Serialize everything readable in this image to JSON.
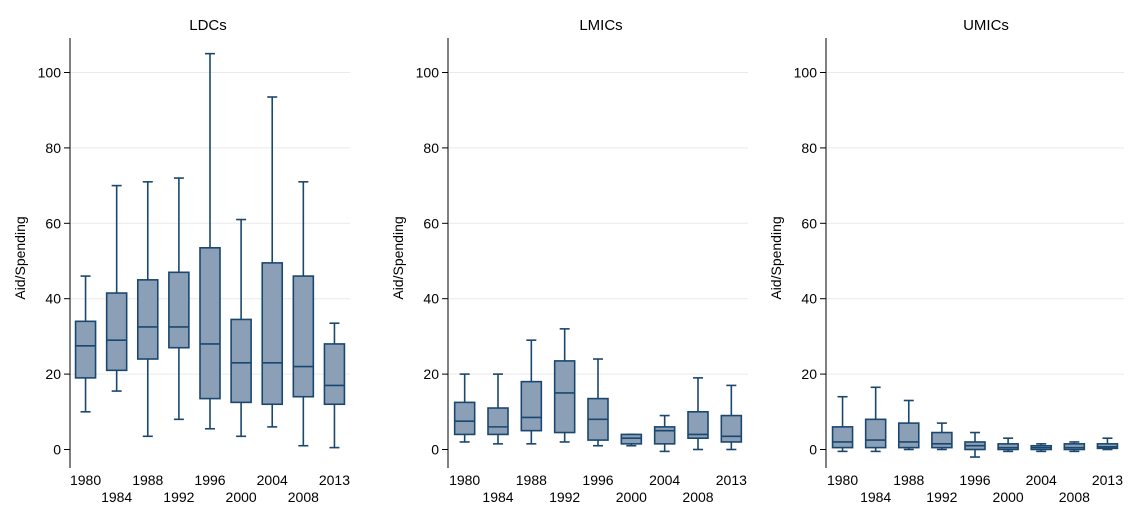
{
  "colors": {
    "box_fill": "#8ba0b6",
    "box_stroke": "#1a476f",
    "grid": "#eaeaea",
    "axis": "#000000"
  },
  "chart_data": [
    {
      "type": "box",
      "title": "LDCs",
      "xlabel": "",
      "ylabel": "Aid/Spending",
      "ylim": [
        0,
        100
      ],
      "yticks": [
        0,
        20,
        40,
        60,
        80,
        100
      ],
      "grid": true,
      "categories": [
        "1980",
        "1984",
        "1988",
        "1992",
        "1996",
        "2000",
        "2004",
        "2008",
        "2013"
      ],
      "boxes": [
        {
          "x": "1980",
          "min": 10,
          "q1": 19,
          "median": 27.5,
          "q3": 34,
          "max": 46
        },
        {
          "x": "1984",
          "min": 15.5,
          "q1": 21,
          "median": 29,
          "q3": 41.5,
          "max": 70
        },
        {
          "x": "1988",
          "min": 3.5,
          "q1": 24,
          "median": 32.5,
          "q3": 45,
          "max": 71
        },
        {
          "x": "1992",
          "min": 8,
          "q1": 27,
          "median": 32.5,
          "q3": 47,
          "max": 72
        },
        {
          "x": "1996",
          "min": 5.5,
          "q1": 13.5,
          "median": 28,
          "q3": 53.5,
          "max": 105
        },
        {
          "x": "2000",
          "min": 3.5,
          "q1": 12.5,
          "median": 23,
          "q3": 34.5,
          "max": 61
        },
        {
          "x": "2004",
          "min": 6,
          "q1": 12,
          "median": 23,
          "q3": 49.5,
          "max": 93.5
        },
        {
          "x": "2008",
          "min": 1,
          "q1": 14,
          "median": 22,
          "q3": 46,
          "max": 71
        },
        {
          "x": "2013",
          "min": 0.5,
          "q1": 12,
          "median": 17,
          "q3": 28,
          "max": 33.5
        }
      ]
    },
    {
      "type": "box",
      "title": "LMICs",
      "xlabel": "",
      "ylabel": "Aid/Spending",
      "ylim": [
        0,
        100
      ],
      "yticks": [
        0,
        20,
        40,
        60,
        80,
        100
      ],
      "grid": true,
      "categories": [
        "1980",
        "1984",
        "1988",
        "1992",
        "1996",
        "2000",
        "2004",
        "2008",
        "2013"
      ],
      "boxes": [
        {
          "x": "1980",
          "min": 2,
          "q1": 4,
          "median": 7.5,
          "q3": 12.5,
          "max": 20
        },
        {
          "x": "1984",
          "min": 1.5,
          "q1": 4,
          "median": 6,
          "q3": 11,
          "max": 20
        },
        {
          "x": "1988",
          "min": 1.5,
          "q1": 5,
          "median": 8.5,
          "q3": 18,
          "max": 29
        },
        {
          "x": "1992",
          "min": 2,
          "q1": 4.5,
          "median": 15,
          "q3": 23.5,
          "max": 32
        },
        {
          "x": "1996",
          "min": 1,
          "q1": 2.5,
          "median": 8,
          "q3": 13.5,
          "max": 24
        },
        {
          "x": "2000",
          "min": 1,
          "q1": 1.5,
          "median": 3,
          "q3": 4,
          "max": 4
        },
        {
          "x": "2004",
          "min": -0.5,
          "q1": 1.5,
          "median": 5,
          "q3": 6,
          "max": 9
        },
        {
          "x": "2008",
          "min": 0,
          "q1": 3,
          "median": 4,
          "q3": 10,
          "max": 19
        },
        {
          "x": "2013",
          "min": 0,
          "q1": 2,
          "median": 3.5,
          "q3": 9,
          "max": 17
        }
      ]
    },
    {
      "type": "box",
      "title": "UMICs",
      "xlabel": "",
      "ylabel": "Aid/Spending",
      "ylim": [
        0,
        100
      ],
      "yticks": [
        0,
        20,
        40,
        60,
        80,
        100
      ],
      "grid": true,
      "categories": [
        "1980",
        "1984",
        "1988",
        "1992",
        "1996",
        "2000",
        "2004",
        "2008",
        "2013"
      ],
      "boxes": [
        {
          "x": "1980",
          "min": -0.5,
          "q1": 0.5,
          "median": 2,
          "q3": 6,
          "max": 14
        },
        {
          "x": "1984",
          "min": -0.5,
          "q1": 0.5,
          "median": 2.5,
          "q3": 8,
          "max": 16.5
        },
        {
          "x": "1988",
          "min": 0,
          "q1": 0.5,
          "median": 2,
          "q3": 7,
          "max": 13
        },
        {
          "x": "1992",
          "min": 0,
          "q1": 0.5,
          "median": 1.5,
          "q3": 4.5,
          "max": 7
        },
        {
          "x": "1996",
          "min": -2,
          "q1": 0,
          "median": 1,
          "q3": 2,
          "max": 4.5
        },
        {
          "x": "2000",
          "min": -0.5,
          "q1": 0,
          "median": 0.5,
          "q3": 1.5,
          "max": 3
        },
        {
          "x": "2004",
          "min": -0.5,
          "q1": 0,
          "median": 0.5,
          "q3": 1,
          "max": 1.5
        },
        {
          "x": "2008",
          "min": -0.5,
          "q1": 0,
          "median": 0.5,
          "q3": 1.5,
          "max": 2
        },
        {
          "x": "2013",
          "min": 0,
          "q1": 0.3,
          "median": 0.7,
          "q3": 1.5,
          "max": 3
        }
      ]
    }
  ]
}
